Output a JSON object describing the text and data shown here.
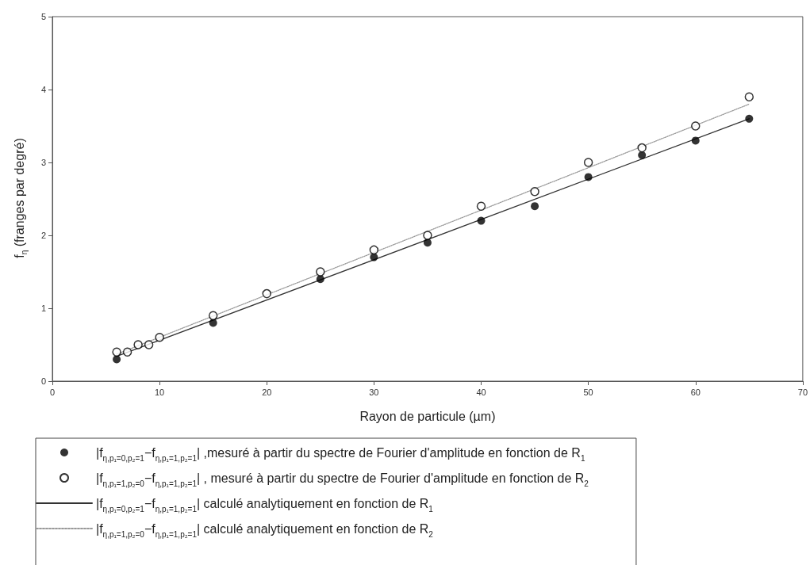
{
  "chart_data": {
    "type": "scatter",
    "xlabel": "Rayon de particule (µm)",
    "ylabel": "f$_{η}$ (franges par degré)",
    "xlim": [
      0,
      70
    ],
    "xticks": [
      0,
      10,
      20,
      30,
      40,
      50,
      60,
      70
    ],
    "ylim": [
      0,
      5
    ],
    "yticks": [
      0,
      1,
      2,
      3,
      4,
      5
    ],
    "grid": false,
    "legend": "bottom",
    "series": [
      {
        "name": "|f$_{η,p₁=0,p₂=1}$−f$_{η,p₁=1,p₂=1}$| ,mesuré à partir du spectre de Fourier d'amplitude en fonction de R$_{1}$",
        "marker": "circle",
        "color": "#000000",
        "x": [
          6,
          15,
          25,
          30,
          35,
          40,
          45,
          50,
          55,
          60,
          65
        ],
        "values": [
          0.3,
          0.8,
          1.4,
          1.7,
          1.9,
          2.2,
          2.4,
          2.8,
          3.1,
          3.3,
          3.6
        ]
      },
      {
        "name": "|f$_{η,p₁=1,p₂=0}$−f$_{η,p₁=1,p₂=1}$| , mesuré à partir du spectre de Fourier d'amplitude en fonction de R$_{2}$",
        "marker": "circle",
        "color": "#000000",
        "x": [
          6,
          7,
          8,
          9,
          10,
          15,
          20,
          25,
          30,
          35,
          40,
          45,
          50,
          55,
          60,
          65
        ],
        "values": [
          0.4,
          0.4,
          0.5,
          0.5,
          0.6,
          0.9,
          1.2,
          1.5,
          1.8,
          2.0,
          2.4,
          2.6,
          3.0,
          3.2,
          3.5,
          3.9
        ]
      },
      {
        "name": "|f$_{η,p₁=0,p₂=1}$−f$_{η,p₁=1,p₂=1}$| calculé analytiquement en fonction de R$_{1}$",
        "type": "line",
        "marker": "none",
        "line_style": "solid",
        "color": "#333333",
        "x": [
          6,
          65
        ],
        "values": [
          0.34,
          3.6
        ]
      },
      {
        "name": "|f$_{η,p₁=1,p₂=0}$−f$_{η,p₁=1,p₂=1}$| calculé analytiquement en fonction de R$_{2}$",
        "type": "line",
        "marker": "none",
        "line_style": "dotted",
        "color": "#999999",
        "x": [
          6,
          65
        ],
        "values": [
          0.37,
          3.8
        ]
      }
    ]
  }
}
